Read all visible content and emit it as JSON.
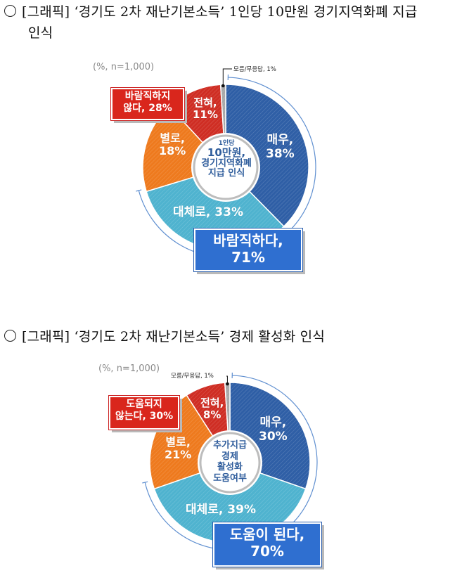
{
  "headings": [
    {
      "bullet": "○",
      "line1": "[그래픽] ‘경기도 2차 재난기본소득’ 1인당 10만원 경기지역화폐 지급",
      "line2": "인식"
    },
    {
      "bullet": "○",
      "line1": "[그래픽] ‘경기도 2차 재난기본소득’ 경제 활성화 인식"
    }
  ],
  "charts": [
    {
      "note": "(%, n=1,000)",
      "dk_label": "모름/무응답, 1%",
      "center_lines": [
        "1인당",
        "10만원,",
        "경기지역화폐",
        "지급 인식"
      ],
      "slices": [
        {
          "name": "매우",
          "label1": "매우,",
          "label2": "38%",
          "value": 38,
          "color": "#2f5fa6"
        },
        {
          "name": "대체로",
          "label1": "대체로, 33%",
          "label2": "",
          "value": 33,
          "color": "#4fb3cf"
        },
        {
          "name": "별로",
          "label1": "별로,",
          "label2": "18%",
          "value": 18,
          "color": "#ee7a1e"
        },
        {
          "name": "전혀",
          "label1": "전혀,",
          "label2": "11%",
          "value": 11,
          "color": "#cf2e24"
        },
        {
          "name": "모름/무응답",
          "label1": "",
          "label2": "",
          "value": 1,
          "color": "#a8a8a8"
        }
      ],
      "negative_box": {
        "line1": "바람직하지",
        "line2": "않다, 28%"
      },
      "positive_box": {
        "line1": "바람직하다,",
        "line2": "71%"
      }
    },
    {
      "note": "(%, n=1,000)",
      "dk_label": "모름/무응답, 1%",
      "center_lines": [
        "추가지급",
        "경제",
        "활성화",
        "도움여부"
      ],
      "slices": [
        {
          "name": "매우",
          "label1": "매우,",
          "label2": "30%",
          "value": 30,
          "color": "#2f5fa6"
        },
        {
          "name": "대체로",
          "label1": "대체로, 39%",
          "label2": "",
          "value": 39,
          "color": "#4fb3cf"
        },
        {
          "name": "별로",
          "label1": "별로,",
          "label2": "21%",
          "value": 21,
          "color": "#ee7a1e"
        },
        {
          "name": "전혀",
          "label1": "전혀,",
          "label2": "8%",
          "value": 8,
          "color": "#cf2e24"
        },
        {
          "name": "모름/무응답",
          "label1": "",
          "label2": "",
          "value": 1,
          "color": "#a8a8a8"
        }
      ],
      "negative_box": {
        "line1": "도움되지",
        "line2": "않는다, 30%"
      },
      "positive_box": {
        "line1": "도움이 된다,",
        "line2": "70%"
      }
    }
  ],
  "chart_data": [
    {
      "type": "pie",
      "title": "‘경기도 2차 재난기본소득’ 1인당 10만원 경기지역화폐 지급 인식",
      "subtitle": "(%, n=1,000)",
      "categories": [
        "매우",
        "대체로",
        "별로",
        "전혀",
        "모름/무응답"
      ],
      "values": [
        38,
        33,
        18,
        11,
        1
      ],
      "groups": [
        {
          "name": "바람직하다",
          "value": 71,
          "members": [
            "매우",
            "대체로"
          ]
        },
        {
          "name": "바람직하지 않다",
          "value": 28,
          "members": [
            "별로",
            "전혀"
          ]
        }
      ],
      "center_label": "1인당 10만원, 경기지역화폐 지급 인식",
      "donut": true
    },
    {
      "type": "pie",
      "title": "‘경기도 2차 재난기본소득’ 경제 활성화 인식",
      "subtitle": "(%, n=1,000)",
      "categories": [
        "매우",
        "대체로",
        "별로",
        "전혀",
        "모름/무응답"
      ],
      "values": [
        30,
        39,
        21,
        8,
        1
      ],
      "groups": [
        {
          "name": "도움이 된다",
          "value": 70,
          "members": [
            "매우",
            "대체로"
          ]
        },
        {
          "name": "도움되지 않는다",
          "value": 30,
          "members": [
            "별로",
            "전혀"
          ]
        }
      ],
      "center_label": "추가지급 경제 활성화 도움여부",
      "donut": true
    }
  ]
}
